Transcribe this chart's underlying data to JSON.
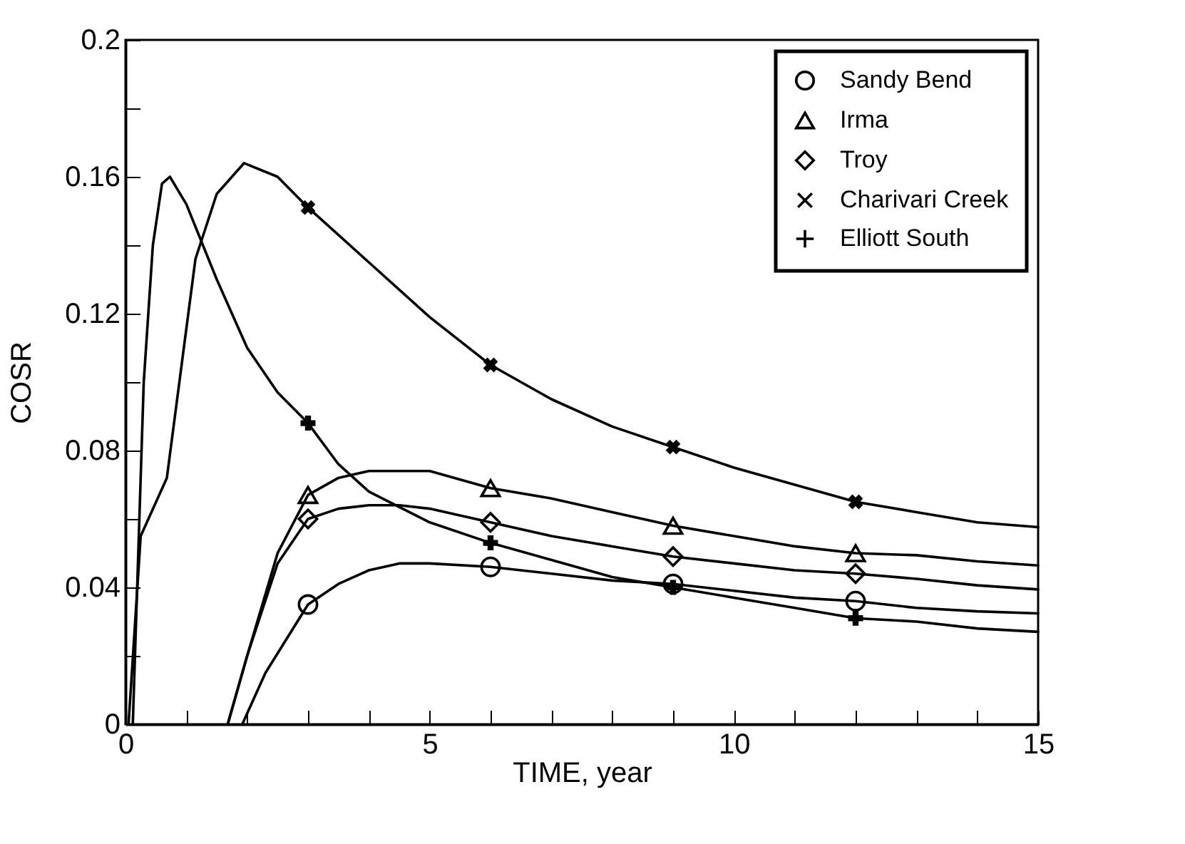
{
  "chart_data": {
    "type": "line",
    "xlabel": "TIME, year",
    "ylabel": "COSR",
    "xlim": [
      0,
      15
    ],
    "ylim": [
      0,
      0.2
    ],
    "xticks": [
      0,
      {
        "value": 1,
        "label": null
      },
      {
        "value": 2,
        "label": null
      },
      {
        "value": 3,
        "label": null
      },
      {
        "value": 4,
        "label": null
      },
      5,
      {
        "value": 6,
        "label": null
      },
      {
        "value": 7,
        "label": null
      },
      {
        "value": 8,
        "label": null
      },
      {
        "value": 9,
        "label": null
      },
      10,
      {
        "value": 11,
        "label": null
      },
      {
        "value": 12,
        "label": null
      },
      {
        "value": 13,
        "label": null
      },
      {
        "value": 14,
        "label": null
      },
      15
    ],
    "yticks": [
      0,
      {
        "value": 0.02,
        "label": null
      },
      0.04,
      {
        "value": 0.06,
        "label": null
      },
      0.08,
      {
        "value": 0.1,
        "label": null
      },
      0.12,
      {
        "value": 0.14,
        "label": null
      },
      0.16,
      {
        "value": 0.18,
        "label": null
      },
      0.2
    ],
    "grid": false,
    "legend": "top right",
    "line_style": "solid",
    "series": [
      {
        "color": "#000000",
        "x": [
          1.92,
          2.3,
          3,
          3.5,
          4,
          4.5,
          5,
          6,
          7,
          8,
          9,
          10,
          11,
          12,
          13,
          14,
          15
        ],
        "values": [
          0,
          0.015,
          0.035,
          0.041,
          0.045,
          0.047,
          0.047,
          0.046,
          0.044,
          0.042,
          0.041,
          0.039,
          0.037,
          0.036,
          0.034,
          0.033,
          0.0324
        ]
      },
      {
        "color": "#000000",
        "x": [
          1.68,
          2,
          2.5,
          3,
          3.5,
          4,
          5,
          6,
          7,
          8,
          9,
          10,
          11,
          12,
          13,
          14,
          15
        ],
        "values": [
          0,
          0.02,
          0.05,
          0.067,
          0.072,
          0.074,
          0.074,
          0.069,
          0.066,
          0.062,
          0.058,
          0.055,
          0.052,
          0.05,
          0.0494,
          0.0476,
          0.0464
        ]
      },
      {
        "color": "#000000",
        "x": [
          1.68,
          2,
          2.5,
          3,
          3.5,
          4,
          4.5,
          5,
          6,
          7,
          8,
          9,
          10,
          11,
          12,
          13,
          14,
          15
        ],
        "values": [
          0,
          0.02,
          0.047,
          0.06,
          0.063,
          0.064,
          0.064,
          0.063,
          0.059,
          0.055,
          0.052,
          0.049,
          0.047,
          0.045,
          0.044,
          0.0425,
          0.0406,
          0.0394
        ]
      },
      {
        "color": "#000000",
        "x": [
          0.05,
          0.25,
          0.68,
          1.15,
          1.5,
          1.95,
          2.5,
          3,
          4,
          5,
          6,
          7,
          8,
          9,
          10,
          11,
          12,
          13,
          14,
          15
        ],
        "values": [
          0,
          0.055,
          0.072,
          0.136,
          0.155,
          0.164,
          0.16,
          0.151,
          0.135,
          0.119,
          0.105,
          0.095,
          0.087,
          0.081,
          0.075,
          0.07,
          0.065,
          0.062,
          0.059,
          0.0576
        ]
      },
      {
        "color": "#000000",
        "x": [
          0.12,
          0.3,
          0.45,
          0.6,
          0.73,
          1,
          1.5,
          2,
          2.5,
          3,
          3.5,
          4,
          5,
          6,
          7,
          8,
          9,
          10,
          11,
          12,
          13,
          14,
          15
        ],
        "values": [
          0,
          0.1,
          0.14,
          0.158,
          0.16,
          0.152,
          0.13,
          0.11,
          0.097,
          0.088,
          0.076,
          0.068,
          0.059,
          0.053,
          0.048,
          0.043,
          0.04,
          0.037,
          0.034,
          0.031,
          0.03,
          0.028,
          0.027
        ]
      },
      {
        "name": "Sandy Bend",
        "color": "#000000",
        "type": "scatter",
        "marker": "circle",
        "x": [
          3,
          6,
          9,
          12
        ],
        "values": [
          0.035,
          0.046,
          0.041,
          0.036
        ]
      },
      {
        "name": "Irma",
        "color": "#000000",
        "type": "scatter",
        "marker": "triangle",
        "x": [
          3,
          6,
          9,
          12
        ],
        "values": [
          0.067,
          0.069,
          0.058,
          0.05
        ]
      },
      {
        "name": "Troy",
        "color": "#000000",
        "type": "scatter",
        "marker": "diamond",
        "x": [
          3,
          6,
          9,
          12
        ],
        "values": [
          0.06,
          0.059,
          0.049,
          0.044
        ]
      },
      {
        "name": "Charivari Creek",
        "color": "#000000",
        "type": "scatter",
        "marker": "x",
        "x": [
          3,
          6,
          9,
          12
        ],
        "values": [
          0.151,
          0.105,
          0.081,
          0.065
        ]
      },
      {
        "name": "Elliott South",
        "color": "#000000",
        "type": "scatter",
        "marker": "cross",
        "x": [
          3,
          6,
          9,
          12
        ],
        "values": [
          0.088,
          0.053,
          0.04,
          0.031
        ]
      }
    ]
  }
}
